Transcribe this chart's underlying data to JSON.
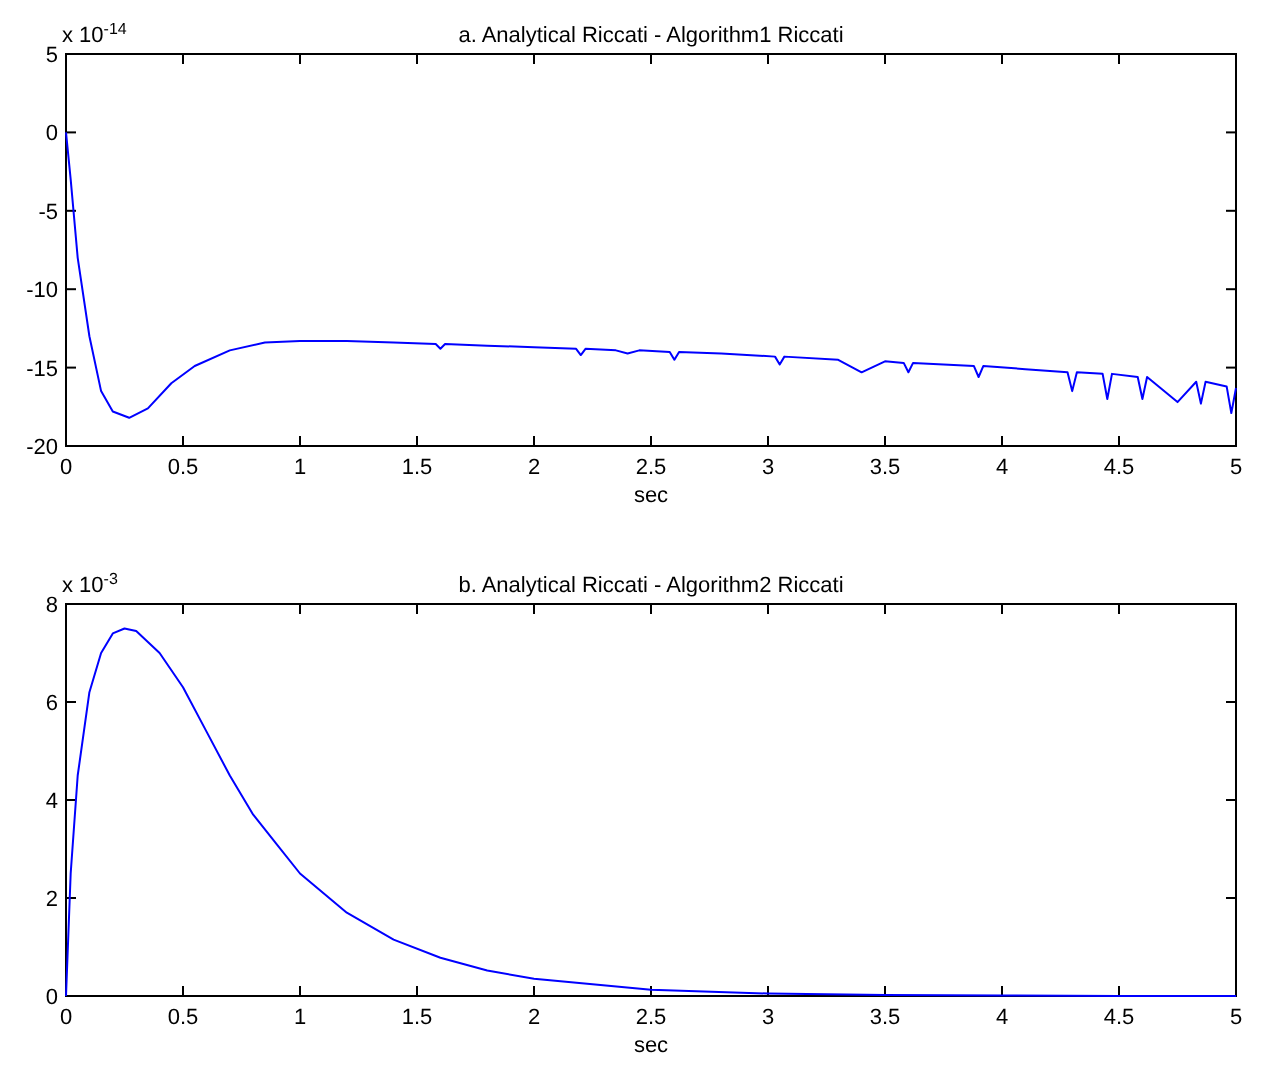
{
  "chart_data": [
    {
      "type": "line",
      "title": "a. Analytical Riccati - Algorithm1 Riccati",
      "xlabel": "sec",
      "annotations": [
        "x 10$^{-14}$"
      ],
      "xlim": [
        0,
        5
      ],
      "xticks": [
        0,
        0.5,
        1,
        1.5,
        2,
        2.5,
        3,
        3.5,
        4,
        4.5,
        5
      ],
      "ylim": [
        -20,
        5
      ],
      "yticks": [
        -20,
        -15,
        -10,
        -5,
        0,
        5
      ],
      "grid": false,
      "series": [
        {
          "color": "#0000ff",
          "x": [
            0,
            0.02,
            0.05,
            0.1,
            0.15,
            0.2,
            0.27,
            0.35,
            0.45,
            0.55,
            0.7,
            0.85,
            1,
            1.2,
            1.4,
            1.58,
            1.6,
            1.62,
            1.8,
            2,
            2.18,
            2.2,
            2.22,
            2.35,
            2.4,
            2.45,
            2.58,
            2.6,
            2.62,
            2.8,
            3.03,
            3.05,
            3.07,
            3.3,
            3.4,
            3.5,
            3.58,
            3.6,
            3.62,
            3.88,
            3.9,
            3.92,
            4.1,
            4.28,
            4.3,
            4.32,
            4.43,
            4.45,
            4.47,
            4.58,
            4.6,
            4.62,
            4.75,
            4.83,
            4.85,
            4.87,
            4.96,
            4.98,
            5
          ],
          "values": [
            0,
            -3,
            -8,
            -13,
            -16.5,
            -17.8,
            -18.2,
            -17.6,
            -16,
            -14.9,
            -13.9,
            -13.4,
            -13.3,
            -13.3,
            -13.4,
            -13.5,
            -13.8,
            -13.5,
            -13.6,
            -13.7,
            -13.8,
            -14.2,
            -13.8,
            -13.9,
            -14.1,
            -13.9,
            -14,
            -14.5,
            -14,
            -14.1,
            -14.3,
            -14.8,
            -14.3,
            -14.5,
            -15.3,
            -14.6,
            -14.7,
            -15.3,
            -14.7,
            -14.9,
            -15.6,
            -14.9,
            -15.1,
            -15.3,
            -16.5,
            -15.3,
            -15.4,
            -17,
            -15.4,
            -15.6,
            -17,
            -15.6,
            -17.2,
            -15.9,
            -17.3,
            -15.9,
            -16.2,
            -17.9,
            -16.3
          ]
        }
      ]
    },
    {
      "type": "line",
      "title": "b. Analytical Riccati - Algorithm2 Riccati",
      "xlabel": "sec",
      "annotations": [
        "x 10$^{-3}$"
      ],
      "xlim": [
        0,
        5
      ],
      "xticks": [
        0,
        0.5,
        1,
        1.5,
        2,
        2.5,
        3,
        3.5,
        4,
        4.5,
        5
      ],
      "ylim": [
        0,
        8
      ],
      "yticks": [
        0,
        2,
        4,
        6,
        8
      ],
      "grid": false,
      "series": [
        {
          "color": "#0000ff",
          "x": [
            0,
            0.02,
            0.05,
            0.1,
            0.15,
            0.2,
            0.25,
            0.3,
            0.4,
            0.5,
            0.6,
            0.7,
            0.8,
            0.9,
            1,
            1.2,
            1.4,
            1.6,
            1.8,
            2,
            2.5,
            3,
            3.5,
            4,
            4.5,
            5
          ],
          "values": [
            0,
            2.5,
            4.5,
            6.2,
            7.0,
            7.4,
            7.5,
            7.45,
            7.0,
            6.3,
            5.4,
            4.5,
            3.7,
            3.1,
            2.5,
            1.7,
            1.15,
            0.78,
            0.52,
            0.35,
            0.13,
            0.05,
            0.02,
            0.01,
            0,
            0
          ]
        }
      ]
    }
  ]
}
